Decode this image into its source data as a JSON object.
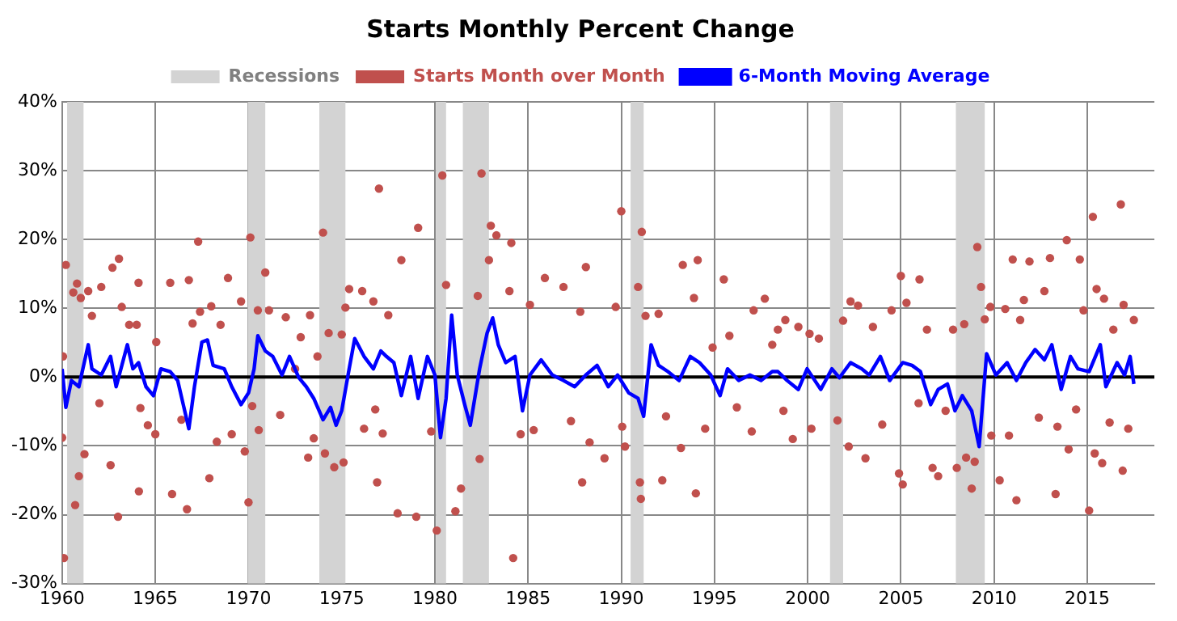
{
  "chart_data": {
    "type": "line",
    "title": "Starts Monthly Percent Change",
    "legend": "top",
    "grid": true,
    "xlim": [
      1960,
      2018.6
    ],
    "xticks": [
      1960,
      1965,
      1970,
      1975,
      1980,
      1985,
      1990,
      1995,
      2000,
      2005,
      2010,
      2015
    ],
    "ylim": [
      -30,
      40
    ],
    "yticks": [
      {
        "value": -30,
        "label": "-30%"
      },
      {
        "value": -20,
        "label": "-20%"
      },
      {
        "value": -10,
        "label": "-10%"
      },
      {
        "value": 0,
        "label": "0%"
      },
      {
        "value": 10,
        "label": "10%"
      },
      {
        "value": 20,
        "label": "20%"
      },
      {
        "value": 30,
        "label": "30%"
      },
      {
        "value": 40,
        "label": "40%"
      }
    ],
    "ref_lines": [
      {
        "axis": "y",
        "value": 0,
        "color": "#000000"
      }
    ],
    "bands": [
      {
        "axis": "x",
        "from": 1960.27,
        "to": 1961.15,
        "label": "Recessions",
        "color": "#d3d3d3"
      },
      {
        "axis": "x",
        "from": 1969.96,
        "to": 1970.9,
        "color": "#d3d3d3"
      },
      {
        "axis": "x",
        "from": 1973.8,
        "to": 1975.2,
        "color": "#d3d3d3"
      },
      {
        "axis": "x",
        "from": 1980.05,
        "to": 1980.6,
        "color": "#d3d3d3"
      },
      {
        "axis": "x",
        "from": 1981.5,
        "to": 1982.9,
        "color": "#d3d3d3"
      },
      {
        "axis": "x",
        "from": 1990.5,
        "to": 1991.2,
        "color": "#d3d3d3"
      },
      {
        "axis": "x",
        "from": 2001.2,
        "to": 2001.9,
        "color": "#d3d3d3"
      },
      {
        "axis": "x",
        "from": 2007.95,
        "to": 2009.5,
        "color": "#d3d3d3"
      }
    ],
    "series": [
      {
        "name": "Starts Month over Month",
        "type": "scatter",
        "marker": "circle",
        "color": "#c0504d",
        "x": [
          1960.0,
          1960.05,
          1960.1,
          1960.2,
          1960.6,
          1960.7,
          1960.8,
          1960.9,
          1961.0,
          1961.2,
          1961.4,
          1961.6,
          1962.0,
          1962.1,
          1962.6,
          1962.7,
          1963.0,
          1963.05,
          1963.2,
          1963.6,
          1964.0,
          1964.1,
          1964.12,
          1964.2,
          1964.6,
          1965.0,
          1965.05,
          1965.8,
          1965.9,
          1966.4,
          1966.7,
          1966.8,
          1967.0,
          1967.3,
          1967.4,
          1967.9,
          1968.0,
          1968.3,
          1968.5,
          1968.9,
          1969.1,
          1969.6,
          1969.8,
          1970.0,
          1970.1,
          1970.2,
          1970.5,
          1970.55,
          1970.9,
          1971.1,
          1971.7,
          1972.0,
          1972.5,
          1972.8,
          1973.2,
          1973.3,
          1973.5,
          1973.7,
          1974.0,
          1974.1,
          1974.3,
          1974.6,
          1975.0,
          1975.1,
          1975.2,
          1975.4,
          1976.1,
          1976.2,
          1976.7,
          1976.8,
          1976.9,
          1977.0,
          1977.2,
          1977.5,
          1978.0,
          1978.2,
          1979.0,
          1979.1,
          1979.8,
          1980.1,
          1980.4,
          1980.6,
          1981.1,
          1981.4,
          1982.3,
          1982.4,
          1982.5,
          1982.9,
          1983.0,
          1983.3,
          1984.0,
          1984.1,
          1984.2,
          1984.6,
          1985.1,
          1985.3,
          1985.9,
          1986.9,
          1987.3,
          1987.8,
          1987.9,
          1988.1,
          1988.3,
          1989.1,
          1989.7,
          1990.0,
          1990.05,
          1990.2,
          1990.9,
          1991.0,
          1991.05,
          1991.1,
          1991.3,
          1992.0,
          1992.2,
          1992.4,
          1993.2,
          1993.3,
          1993.9,
          1994.0,
          1994.1,
          1994.5,
          1994.9,
          1995.5,
          1995.8,
          1996.2,
          1997.0,
          1997.1,
          1997.7,
          1998.1,
          1998.4,
          1998.7,
          1998.8,
          1999.2,
          1999.5,
          2000.1,
          2000.2,
          2000.6,
          2001.6,
          2001.9,
          2002.2,
          2002.3,
          2002.7,
          2003.1,
          2003.5,
          2004.0,
          2004.5,
          2004.9,
          2005.0,
          2005.1,
          2005.3,
          2005.95,
          2006.0,
          2006.4,
          2006.7,
          2007.0,
          2007.4,
          2007.8,
          2008.0,
          2008.4,
          2008.5,
          2008.8,
          2008.96,
          2009.1,
          2009.3,
          2009.5,
          2009.8,
          2009.85,
          2010.3,
          2010.6,
          2010.8,
          2011.0,
          2011.2,
          2011.4,
          2011.6,
          2011.9,
          2012.4,
          2012.7,
          2013.0,
          2013.3,
          2013.4,
          2013.9,
          2014.0,
          2014.4,
          2014.6,
          2014.8,
          2015.1,
          2015.3,
          2015.4,
          2015.5,
          2015.8,
          2015.9,
          2016.2,
          2016.4,
          2016.8,
          2016.9,
          2016.95,
          2017.2,
          2017.5
        ],
        "values": [
          -8.8,
          3,
          -26.3,
          16.3,
          12.3,
          -18.6,
          13.6,
          -14.4,
          11.5,
          -11.2,
          12.5,
          8.9,
          -3.8,
          13.1,
          -12.8,
          15.9,
          -20.3,
          17.2,
          10.2,
          7.6,
          7.6,
          13.7,
          -16.6,
          -4.5,
          -7,
          -8.3,
          5.1,
          13.7,
          -17,
          -6.2,
          -19.2,
          14.1,
          7.8,
          19.7,
          9.5,
          -14.7,
          10.3,
          -9.4,
          7.6,
          14.4,
          -8.3,
          11,
          -10.8,
          -18.2,
          20.3,
          -4.2,
          9.7,
          -7.7,
          15.2,
          9.7,
          -5.5,
          8.7,
          1.2,
          5.8,
          -11.7,
          9,
          -8.9,
          3,
          21,
          -11.1,
          6.4,
          -13.1,
          6.2,
          -12.4,
          10.1,
          12.8,
          12.5,
          -7.5,
          11,
          -4.7,
          -15.3,
          27.4,
          -8.2,
          9,
          -19.8,
          17,
          -20.3,
          21.7,
          -7.9,
          -22.3,
          29.3,
          13.4,
          -19.5,
          -16.2,
          11.8,
          -11.9,
          29.6,
          17,
          22,
          20.6,
          12.5,
          19.5,
          -26.3,
          -8.3,
          10.5,
          -7.7,
          14.4,
          13.1,
          -6.4,
          9.5,
          -15.3,
          16,
          -9.5,
          -11.8,
          10.2,
          24.1,
          -7.2,
          -10.1,
          13.1,
          -15.3,
          -17.7,
          21.1,
          8.9,
          9.2,
          -15,
          -5.7,
          -10.3,
          16.3,
          11.5,
          -16.9,
          17,
          -7.5,
          4.3,
          14.2,
          6,
          -4.4,
          -7.9,
          9.7,
          11.4,
          4.7,
          6.9,
          -4.9,
          8.3,
          -9,
          7.3,
          6.3,
          -7.5,
          5.6,
          -6.3,
          8.2,
          -10.1,
          11,
          10.4,
          -11.8,
          7.3,
          -6.9,
          9.7,
          -14,
          14.7,
          -15.6,
          10.8,
          -3.8,
          14.2,
          6.9,
          -13.2,
          -14.4,
          -4.9,
          6.9,
          -13.2,
          7.7,
          -11.7,
          -16.2,
          -12.3,
          18.9,
          13.1,
          8.4,
          10.2,
          -8.5,
          -15,
          9.9,
          -8.5,
          17.1,
          -17.9,
          8.3,
          11.2,
          16.8,
          -5.9,
          12.5,
          17.3,
          -17,
          -7.2,
          19.9,
          -10.5,
          -4.7,
          17.1,
          9.7,
          -19.4,
          23.3,
          -11.1,
          12.8,
          -12.5,
          11.4,
          -6.6,
          6.9,
          25.1,
          -13.6,
          10.5,
          -7.5,
          8.3
        ]
      },
      {
        "name": "6-Month Moving Average",
        "type": "line",
        "marker": "none",
        "color": "#0000ff",
        "x": [
          1960.0,
          1960.2,
          1960.5,
          1960.9,
          1961.4,
          1961.6,
          1962.1,
          1962.6,
          1962.9,
          1963.5,
          1963.8,
          1964.1,
          1964.5,
          1964.9,
          1965.3,
          1965.8,
          1966.2,
          1966.5,
          1966.8,
          1967.1,
          1967.5,
          1967.8,
          1968.1,
          1968.7,
          1969.1,
          1969.6,
          1970.0,
          1970.3,
          1970.5,
          1970.9,
          1971.3,
          1971.8,
          1972.2,
          1972.7,
          1973.1,
          1973.5,
          1974.0,
          1974.4,
          1974.7,
          1975.0,
          1975.4,
          1975.7,
          1976.2,
          1976.7,
          1977.1,
          1977.4,
          1977.8,
          1978.2,
          1978.7,
          1979.1,
          1979.6,
          1980.0,
          1980.3,
          1980.6,
          1980.9,
          1981.2,
          1981.6,
          1981.9,
          1982.4,
          1982.8,
          1983.1,
          1983.4,
          1983.8,
          1984.3,
          1984.7,
          1985.1,
          1985.7,
          1986.3,
          1986.9,
          1987.5,
          1988.1,
          1988.7,
          1989.3,
          1989.8,
          1990.4,
          1990.9,
          1991.2,
          1991.6,
          1992.0,
          1992.5,
          1993.1,
          1993.7,
          1994.2,
          1994.8,
          1995.3,
          1995.7,
          1996.3,
          1996.9,
          1997.5,
          1998.1,
          1998.4,
          1998.9,
          1999.5,
          1999.97,
          2000.7,
          2001.3,
          2001.7,
          2002.3,
          2002.9,
          2003.3,
          2003.9,
          2004.4,
          2005.1,
          2005.6,
          2006.05,
          2006.6,
          2007.0,
          2007.5,
          2007.9,
          2008.3,
          2008.8,
          2009.2,
          2009.6,
          2010.1,
          2010.7,
          2011.2,
          2011.7,
          2012.2,
          2012.7,
          2013.1,
          2013.6,
          2014.1,
          2014.5,
          2015.1,
          2015.7,
          2016.0,
          2016.6,
          2017.0,
          2017.3,
          2017.5
        ],
        "values": [
          1.2,
          -4.4,
          -0.5,
          -1.4,
          4.7,
          1.2,
          0.3,
          3,
          -1.4,
          4.7,
          1.2,
          2.1,
          -1.4,
          -2.7,
          1.2,
          0.8,
          -0.5,
          -4,
          -7.5,
          -1.4,
          5.1,
          5.4,
          1.7,
          1.2,
          -1.4,
          -4,
          -2.3,
          1.2,
          6,
          3.8,
          3,
          0.3,
          3,
          -0.1,
          -1.4,
          -3.1,
          -6.2,
          -4.4,
          -7,
          -4.9,
          1.2,
          5.6,
          3,
          1.2,
          3.8,
          3,
          2.1,
          -2.7,
          3,
          -3.1,
          3,
          0.3,
          -8.8,
          -3.1,
          9,
          0.3,
          -4,
          -7,
          1.2,
          6.4,
          8.6,
          4.7,
          2.1,
          3,
          -4.9,
          0.3,
          2.5,
          0.3,
          -0.5,
          -1.4,
          0.3,
          1.7,
          -1.4,
          0.3,
          -2.3,
          -3.1,
          -5.7,
          4.7,
          1.7,
          0.8,
          -0.5,
          3,
          2.1,
          0.3,
          -2.7,
          1.2,
          -0.5,
          0.3,
          -0.5,
          0.8,
          0.8,
          -0.5,
          -1.8,
          1.2,
          -1.8,
          1.2,
          -0.1,
          2.1,
          1.2,
          0.3,
          3,
          -0.5,
          2.1,
          1.7,
          0.8,
          -4,
          -1.8,
          -1,
          -4.9,
          -2.7,
          -4.9,
          -10.1,
          3.4,
          0.3,
          2.1,
          -0.5,
          2.1,
          4,
          2.5,
          4.7,
          -1.8,
          3,
          1.2,
          0.8,
          4.7,
          -1.4,
          2.1,
          0.3,
          3,
          -1
        ]
      }
    ]
  }
}
